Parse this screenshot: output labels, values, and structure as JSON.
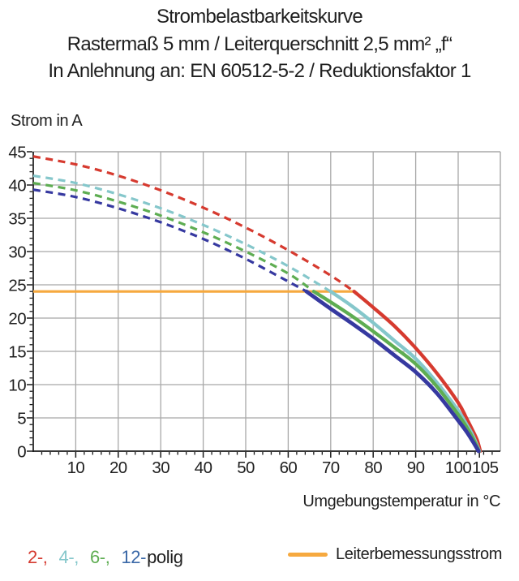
{
  "title": {
    "line1": "Strombelastbarkeitskurve",
    "line2": "Rastermaß 5 mm / Leiterquerschnitt 2,5 mm² „f“",
    "line3": "In Anlehnung an: EN 60512-5-2 / Reduktionsfaktor 1"
  },
  "y_axis_title": "Strom in A",
  "x_axis_title": "Umgebungstemperatur in °C",
  "legend": {
    "poles": [
      {
        "label": "2-,",
        "series": "2-polig",
        "color": "#d53a30"
      },
      {
        "label": "4-,",
        "series": "4-polig",
        "color": "#85c7cb"
      },
      {
        "label": "6-,",
        "series": "6-polig",
        "color": "#5ead52"
      },
      {
        "label": "12-",
        "series": "12-polig",
        "color": "#3a68a7"
      }
    ],
    "poles_suffix": "polig",
    "rated": {
      "label": "Leiterbemessungsstrom",
      "color": "#f6a93f"
    }
  },
  "chart_data": {
    "type": "line",
    "title": "Strombelastbarkeitskurve",
    "xlabel": "Umgebungstemperatur in °C",
    "ylabel": "Strom in A",
    "xlim": [
      0,
      110
    ],
    "ylim": [
      0,
      45
    ],
    "x_major_ticks": [
      10,
      20,
      30,
      40,
      50,
      60,
      70,
      80,
      90,
      100,
      105
    ],
    "y_major_ticks": [
      0,
      5,
      10,
      15,
      20,
      25,
      30,
      35,
      40,
      45
    ],
    "x_minor_step": 2,
    "y_minor_step": 1,
    "grid": {
      "x_step": 10,
      "y_step": 5,
      "color": "#a8a8a8",
      "on": true
    },
    "axis_color": "#1a1a1a",
    "legend_position": "bottom",
    "series": [
      {
        "name": "2-polig",
        "color": "#d63a2f",
        "dashed_points": [
          [
            0,
            44.3
          ],
          [
            10,
            43.1
          ],
          [
            20,
            41.4
          ],
          [
            30,
            39.2
          ],
          [
            40,
            36.6
          ],
          [
            50,
            33.6
          ],
          [
            60,
            30.2
          ],
          [
            70,
            26.4
          ],
          [
            75.5,
            24
          ]
        ],
        "solid_points": [
          [
            75.5,
            24
          ],
          [
            80,
            21.6
          ],
          [
            85,
            18.8
          ],
          [
            90,
            15.5
          ],
          [
            95,
            11.7
          ],
          [
            100,
            7.3
          ],
          [
            102,
            4.9
          ],
          [
            103.5,
            3.0
          ],
          [
            104.5,
            1.6
          ],
          [
            105.2,
            0
          ]
        ]
      },
      {
        "name": "4-polig",
        "color": "#85c7cb",
        "dashed_points": [
          [
            0,
            41.4
          ],
          [
            10,
            40.3
          ],
          [
            20,
            38.6
          ],
          [
            30,
            36.5
          ],
          [
            40,
            34.0
          ],
          [
            50,
            31.1
          ],
          [
            60,
            27.8
          ],
          [
            70,
            24
          ]
        ],
        "solid_points": [
          [
            70,
            24
          ],
          [
            75,
            21.8
          ],
          [
            80,
            19.3
          ],
          [
            85,
            16.6
          ],
          [
            90,
            13.9
          ],
          [
            95,
            10.3
          ],
          [
            100,
            6.1
          ],
          [
            102,
            4.0
          ],
          [
            103.5,
            2.3
          ],
          [
            105.0,
            0
          ]
        ]
      },
      {
        "name": "6-polig",
        "color": "#5ead52",
        "dashed_points": [
          [
            0,
            40.3
          ],
          [
            10,
            39.2
          ],
          [
            20,
            37.5
          ],
          [
            30,
            35.4
          ],
          [
            40,
            32.9
          ],
          [
            50,
            30.0
          ],
          [
            60,
            26.7
          ],
          [
            66,
            24
          ]
        ],
        "solid_points": [
          [
            66,
            24
          ],
          [
            70,
            22.4
          ],
          [
            75,
            20.3
          ],
          [
            80,
            18.0
          ],
          [
            85,
            15.6
          ],
          [
            90,
            13.1
          ],
          [
            95,
            9.7
          ],
          [
            100,
            5.5
          ],
          [
            102,
            3.6
          ],
          [
            103.5,
            1.9
          ],
          [
            104.9,
            0
          ]
        ]
      },
      {
        "name": "12-polig",
        "color": "#3639a0",
        "dashed_points": [
          [
            0,
            39.3
          ],
          [
            10,
            38.2
          ],
          [
            20,
            36.5
          ],
          [
            30,
            34.4
          ],
          [
            40,
            31.9
          ],
          [
            50,
            28.9
          ],
          [
            60,
            25.5
          ],
          [
            64.3,
            24
          ]
        ],
        "solid_points": [
          [
            64.3,
            24
          ],
          [
            70,
            21.4
          ],
          [
            75,
            19.2
          ],
          [
            80,
            16.9
          ],
          [
            85,
            14.4
          ],
          [
            90,
            11.9
          ],
          [
            95,
            8.7
          ],
          [
            100,
            4.6
          ],
          [
            102,
            2.9
          ],
          [
            103.5,
            1.4
          ],
          [
            104.8,
            0
          ]
        ]
      }
    ],
    "rated_current_line": {
      "name": "Leiterbemessungsstrom",
      "value": 24,
      "x_range": [
        0,
        75.5
      ],
      "color": "#f6a93f"
    }
  }
}
